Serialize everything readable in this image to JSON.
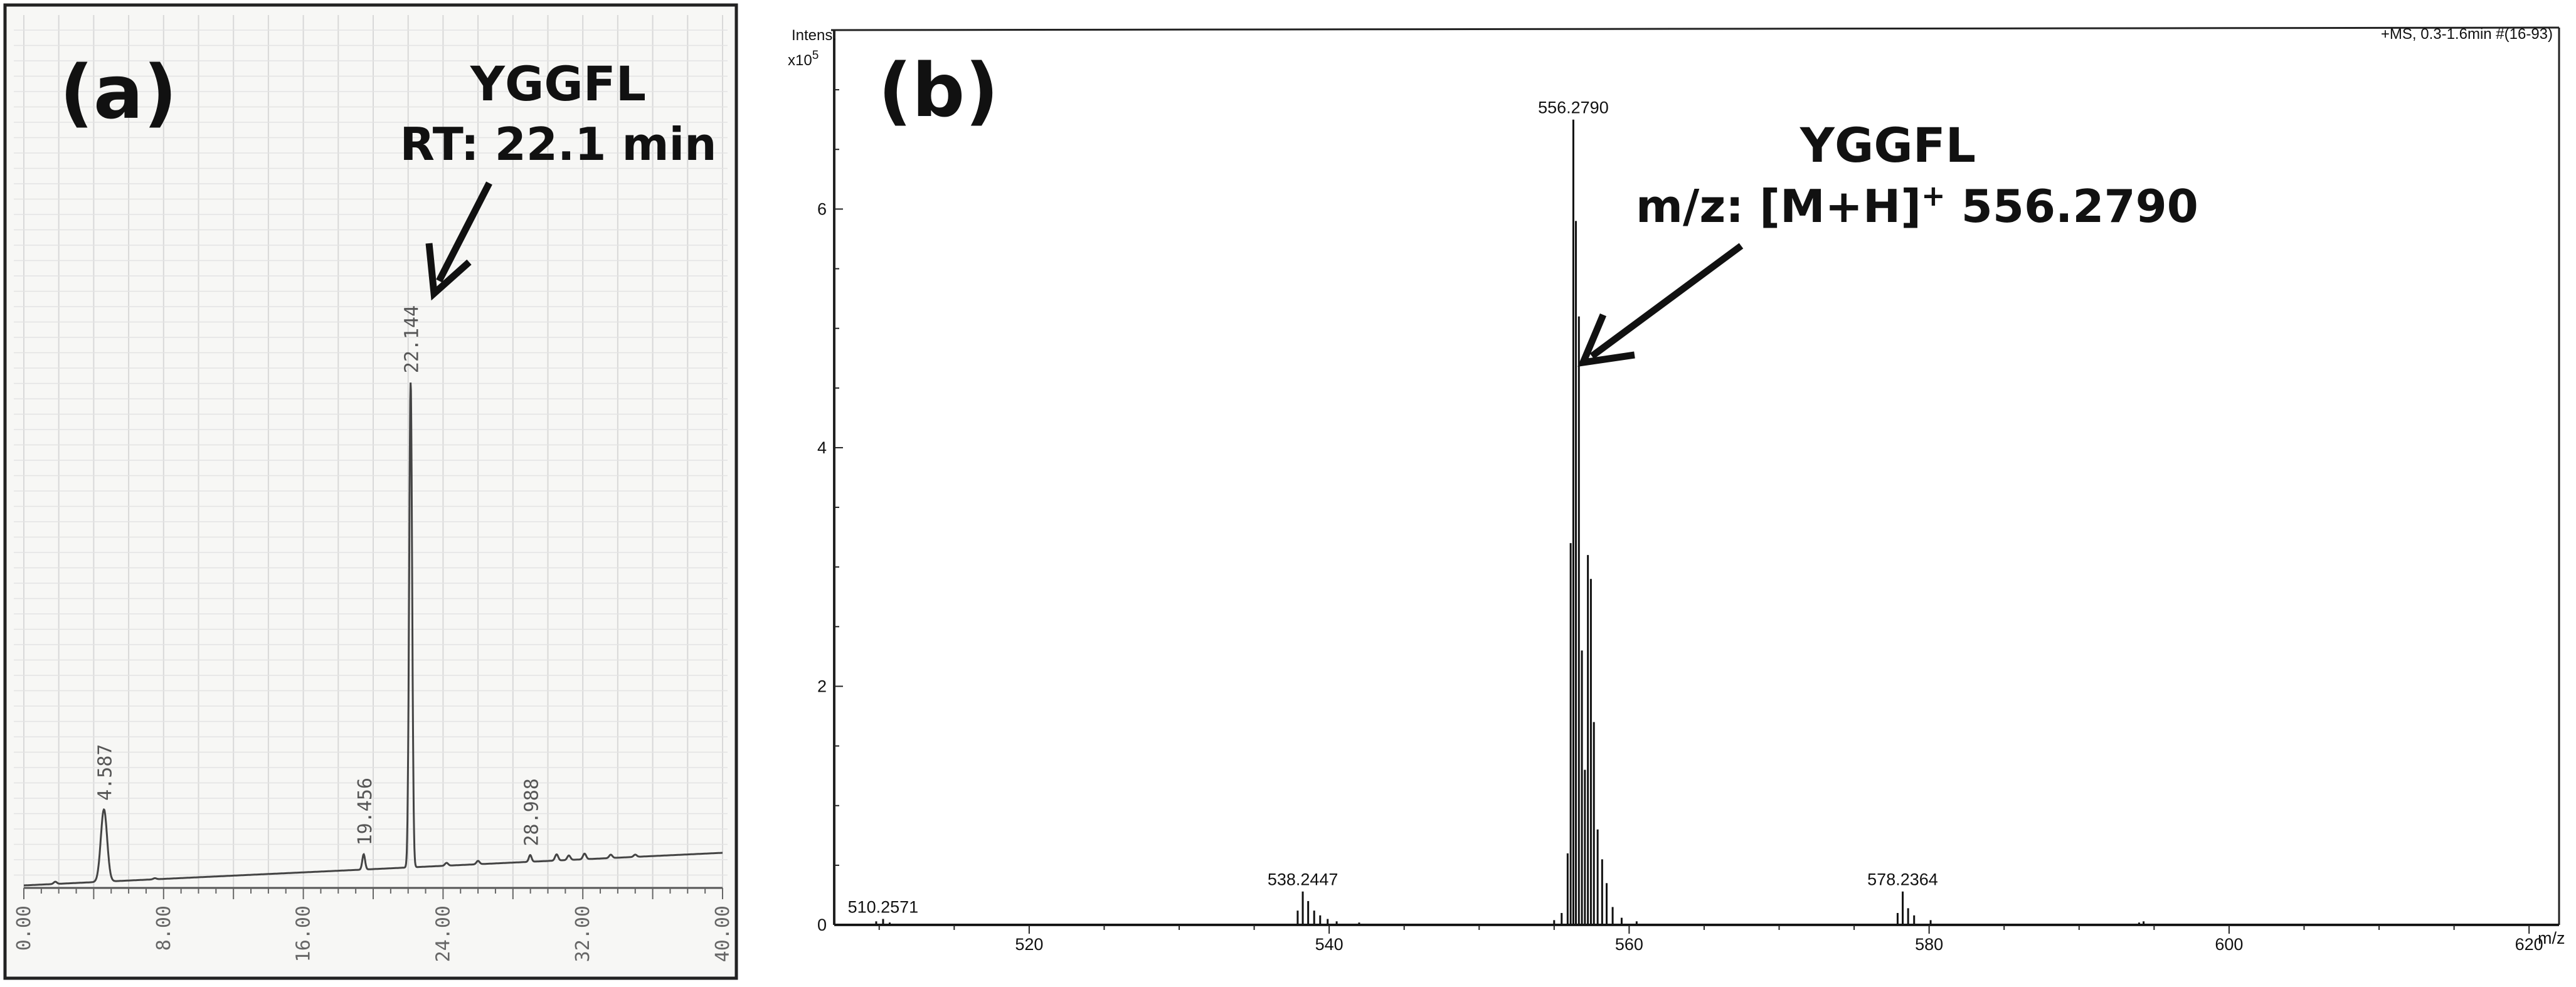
{
  "chart_data": [
    {
      "type": "line",
      "panel": "(a)",
      "annotation": {
        "compound": "YGGFL",
        "detail": "RT: 22.1 min"
      },
      "xlim": [
        0,
        40
      ],
      "x_ticks": [
        "0.00",
        "8.00",
        "16.00",
        "24.00",
        "32.00",
        "40.00"
      ],
      "grid": true,
      "peaks": [
        {
          "x": 4.587,
          "label": "4.587",
          "height": 0.128
        },
        {
          "x": 19.456,
          "label": "19.456",
          "height": 0.027
        },
        {
          "x": 22.144,
          "label": "22.144",
          "height": 0.86
        },
        {
          "x": 28.988,
          "label": "28.988",
          "height": 0.012
        }
      ]
    },
    {
      "type": "line",
      "panel": "(b)",
      "annotation": {
        "compound": "YGGFL",
        "detail_prefix": "m/z: [M+H]",
        "detail_sup": "+",
        "detail_suffix": " 556.2790"
      },
      "header_right": "+MS, 0.3-1.6min #(16-93)",
      "ylabel_line1": "Intens.",
      "ylabel_line2": "x10",
      "ylabel_exp": "5",
      "xlabel": "m/z",
      "xlim": [
        507,
        622
      ],
      "ylim": [
        0,
        7.5
      ],
      "x_ticks": [
        520,
        540,
        560,
        580,
        600,
        620
      ],
      "y_ticks": [
        0,
        2,
        4,
        6
      ],
      "grid": false,
      "peak_labels": [
        {
          "x": 510.2571,
          "y": 0.05,
          "label": "510.2571"
        },
        {
          "x": 538.2447,
          "y": 0.28,
          "label": "538.2447"
        },
        {
          "x": 556.279,
          "y": 6.75,
          "label": "556.2790"
        },
        {
          "x": 578.2364,
          "y": 0.28,
          "label": "578.2364"
        }
      ],
      "sticks": [
        {
          "x": 509.8,
          "y": 0.03
        },
        {
          "x": 510.26,
          "y": 0.05
        },
        {
          "x": 510.7,
          "y": 0.02
        },
        {
          "x": 537.9,
          "y": 0.12
        },
        {
          "x": 538.24,
          "y": 0.28
        },
        {
          "x": 538.6,
          "y": 0.2
        },
        {
          "x": 539.0,
          "y": 0.12
        },
        {
          "x": 539.4,
          "y": 0.08
        },
        {
          "x": 539.9,
          "y": 0.05
        },
        {
          "x": 540.5,
          "y": 0.03
        },
        {
          "x": 542.0,
          "y": 0.02
        },
        {
          "x": 555.0,
          "y": 0.04
        },
        {
          "x": 555.5,
          "y": 0.1
        },
        {
          "x": 555.9,
          "y": 0.6
        },
        {
          "x": 556.1,
          "y": 3.2
        },
        {
          "x": 556.28,
          "y": 6.75
        },
        {
          "x": 556.45,
          "y": 5.9
        },
        {
          "x": 556.65,
          "y": 5.1
        },
        {
          "x": 556.85,
          "y": 2.3
        },
        {
          "x": 557.05,
          "y": 1.3
        },
        {
          "x": 557.25,
          "y": 3.1
        },
        {
          "x": 557.45,
          "y": 2.9
        },
        {
          "x": 557.65,
          "y": 1.7
        },
        {
          "x": 557.9,
          "y": 0.8
        },
        {
          "x": 558.2,
          "y": 0.55
        },
        {
          "x": 558.5,
          "y": 0.35
        },
        {
          "x": 558.9,
          "y": 0.15
        },
        {
          "x": 559.5,
          "y": 0.06
        },
        {
          "x": 560.5,
          "y": 0.03
        },
        {
          "x": 577.9,
          "y": 0.1
        },
        {
          "x": 578.24,
          "y": 0.28
        },
        {
          "x": 578.6,
          "y": 0.14
        },
        {
          "x": 579.0,
          "y": 0.08
        },
        {
          "x": 580.1,
          "y": 0.04
        },
        {
          "x": 594.0,
          "y": 0.02
        },
        {
          "x": 594.3,
          "y": 0.03
        }
      ]
    }
  ]
}
